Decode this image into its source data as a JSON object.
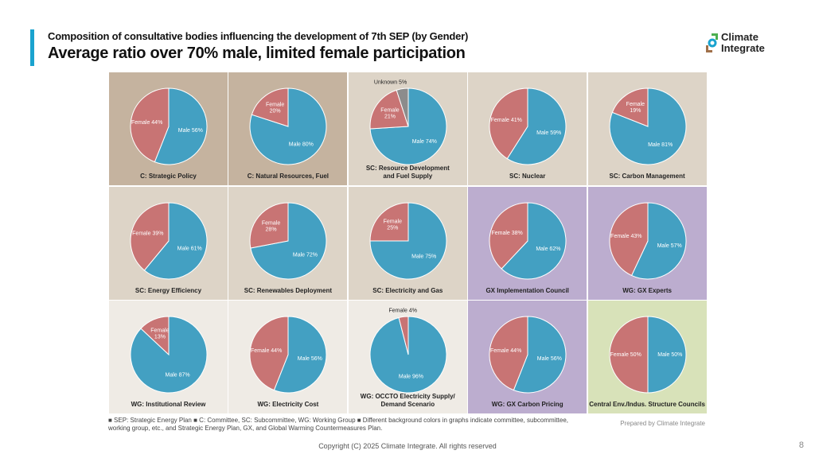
{
  "header": {
    "subtitle": "Composition of consultative bodies influencing the development of 7th SEP (by Gender)",
    "title": "Average ratio over 70% male, limited female participation"
  },
  "logo": {
    "text_line1": "Climate",
    "text_line2": "Integrate"
  },
  "colors": {
    "male": "#43a0c2",
    "female": "#c87474",
    "unknown": "#8c8c8c",
    "accent": "#1aa3cf",
    "bg": {
      "committee": "#c5b39f",
      "subcommittee": "#ddd4c7",
      "gx": "#bcadcf",
      "working_group": "#efebe5",
      "central": "#d8e2b9"
    }
  },
  "chart_data": [
    {
      "type": "pie",
      "title": "C: Strategic Policy",
      "bg": "committee",
      "slices": [
        {
          "name": "Male",
          "value": 56
        },
        {
          "name": "Female",
          "value": 44
        }
      ]
    },
    {
      "type": "pie",
      "title": "C: Natural Resources, Fuel",
      "bg": "committee",
      "slices": [
        {
          "name": "Male",
          "value": 80
        },
        {
          "name": "Female",
          "value": 20
        }
      ]
    },
    {
      "type": "pie",
      "title": "SC: Resource Development\nand Fuel Supply",
      "bg": "subcommittee",
      "slices": [
        {
          "name": "Male",
          "value": 74
        },
        {
          "name": "Female",
          "value": 21
        },
        {
          "name": "Unknown",
          "value": 5
        }
      ]
    },
    {
      "type": "pie",
      "title": "SC: Nuclear",
      "bg": "subcommittee",
      "slices": [
        {
          "name": "Male",
          "value": 59
        },
        {
          "name": "Female",
          "value": 41
        }
      ]
    },
    {
      "type": "pie",
      "title": "SC: Carbon Management",
      "bg": "subcommittee",
      "slices": [
        {
          "name": "Male",
          "value": 81
        },
        {
          "name": "Female",
          "value": 19
        }
      ]
    },
    {
      "type": "pie",
      "title": "SC: Energy Efficiency",
      "bg": "subcommittee",
      "slices": [
        {
          "name": "Male",
          "value": 61
        },
        {
          "name": "Female",
          "value": 39
        }
      ]
    },
    {
      "type": "pie",
      "title": "SC: Renewables Deployment",
      "bg": "subcommittee",
      "slices": [
        {
          "name": "Male",
          "value": 72
        },
        {
          "name": "Female",
          "value": 28
        }
      ]
    },
    {
      "type": "pie",
      "title": "SC: Electricity and Gas",
      "bg": "subcommittee",
      "slices": [
        {
          "name": "Male",
          "value": 75
        },
        {
          "name": "Female",
          "value": 25
        }
      ]
    },
    {
      "type": "pie",
      "title": "GX Implementation Council",
      "bg": "gx",
      "slices": [
        {
          "name": "Male",
          "value": 62
        },
        {
          "name": "Female",
          "value": 38
        }
      ]
    },
    {
      "type": "pie",
      "title": "WG: GX Experts",
      "bg": "gx",
      "slices": [
        {
          "name": "Male",
          "value": 57
        },
        {
          "name": "Female",
          "value": 43
        }
      ]
    },
    {
      "type": "pie",
      "title": "WG: Institutional Review",
      "bg": "working_group",
      "slices": [
        {
          "name": "Male",
          "value": 87
        },
        {
          "name": "Female",
          "value": 13
        }
      ]
    },
    {
      "type": "pie",
      "title": "WG: Electricity Cost",
      "bg": "working_group",
      "slices": [
        {
          "name": "Male",
          "value": 56
        },
        {
          "name": "Female",
          "value": 44
        }
      ]
    },
    {
      "type": "pie",
      "title": "WG: OCCTO Electricity Supply/\nDemand Scenario",
      "bg": "working_group",
      "slices": [
        {
          "name": "Male",
          "value": 96
        },
        {
          "name": "Female",
          "value": 4
        }
      ]
    },
    {
      "type": "pie",
      "title": "WG: GX Carbon Pricing",
      "bg": "gx",
      "slices": [
        {
          "name": "Male",
          "value": 56
        },
        {
          "name": "Female",
          "value": 44
        }
      ]
    },
    {
      "type": "pie",
      "title": "Central Env./Indus. Structure Councils",
      "bg": "central",
      "slices": [
        {
          "name": "Male",
          "value": 50
        },
        {
          "name": "Female",
          "value": 50
        }
      ]
    }
  ],
  "notes": "■ SEP: Strategic Energy Plan   ■ C: Committee, SC: Subcommittee, WG: Working Group   ■ Different background colors in graphs indicate committee, subcommittee, working group, etc., and Strategic Energy Plan, GX, and Global Warming Countermeasures Plan.",
  "prepared_by": "Prepared by Climate Integrate",
  "copyright": "Copyright (C) 2025 Climate Integrate. All rights reserved",
  "page_number": "8"
}
